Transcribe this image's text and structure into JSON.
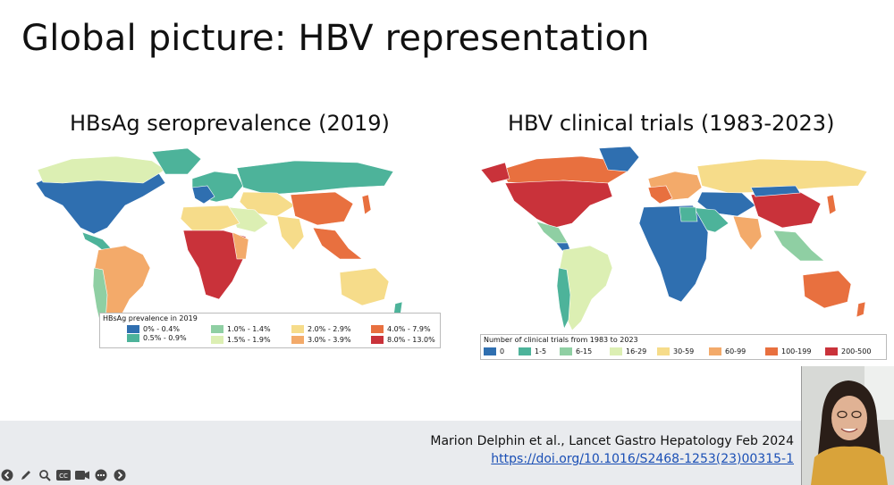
{
  "slide": {
    "title": "Global picture: HBV representation",
    "left_panel": {
      "subtitle": "HBsAg seroprevalence (2019)",
      "legend_title": "HBsAg prevalence in 2019",
      "legend_items": [
        {
          "label": "0% - 0.4%",
          "color": "#2f6fb0"
        },
        {
          "label": "0.5% - 0.9%",
          "color": "#4db39a"
        },
        {
          "label": "1.0% - 1.4%",
          "color": "#8fcfa3"
        },
        {
          "label": "1.5% - 1.9%",
          "color": "#dcefb3"
        },
        {
          "label": "2.0% - 2.9%",
          "color": "#f6dc8a"
        },
        {
          "label": "3.0% - 3.9%",
          "color": "#f3aa6a"
        },
        {
          "label": "4.0% - 7.9%",
          "color": "#e8703f"
        },
        {
          "label": "8.0% - 13.0%",
          "color": "#c9323a"
        }
      ]
    },
    "right_panel": {
      "subtitle": "HBV clinical trials (1983-2023)",
      "legend_title": "Number of clinical trials from 1983 to 2023",
      "legend_items": [
        {
          "label": "0",
          "color": "#2f6fb0"
        },
        {
          "label": "1-5",
          "color": "#4db39a"
        },
        {
          "label": "6-15",
          "color": "#8fcfa3"
        },
        {
          "label": "16-29",
          "color": "#dcefb3"
        },
        {
          "label": "30-59",
          "color": "#f6dc8a"
        },
        {
          "label": "60-99",
          "color": "#f3aa6a"
        },
        {
          "label": "100-199",
          "color": "#e8703f"
        },
        {
          "label": "200-500",
          "color": "#c9323a"
        }
      ]
    },
    "citation": "Marion Delphin et al., Lancet Gastro Hepatology Feb 2024",
    "doi": "https://doi.org/10.1016/S2468-1253(23)00315-1"
  },
  "controls": [
    {
      "icon": "previous-icon"
    },
    {
      "icon": "pen-icon"
    },
    {
      "icon": "magnifier-icon"
    },
    {
      "icon": "captions-icon"
    },
    {
      "icon": "camera-icon"
    },
    {
      "icon": "more-icon"
    },
    {
      "icon": "next-icon"
    }
  ]
}
